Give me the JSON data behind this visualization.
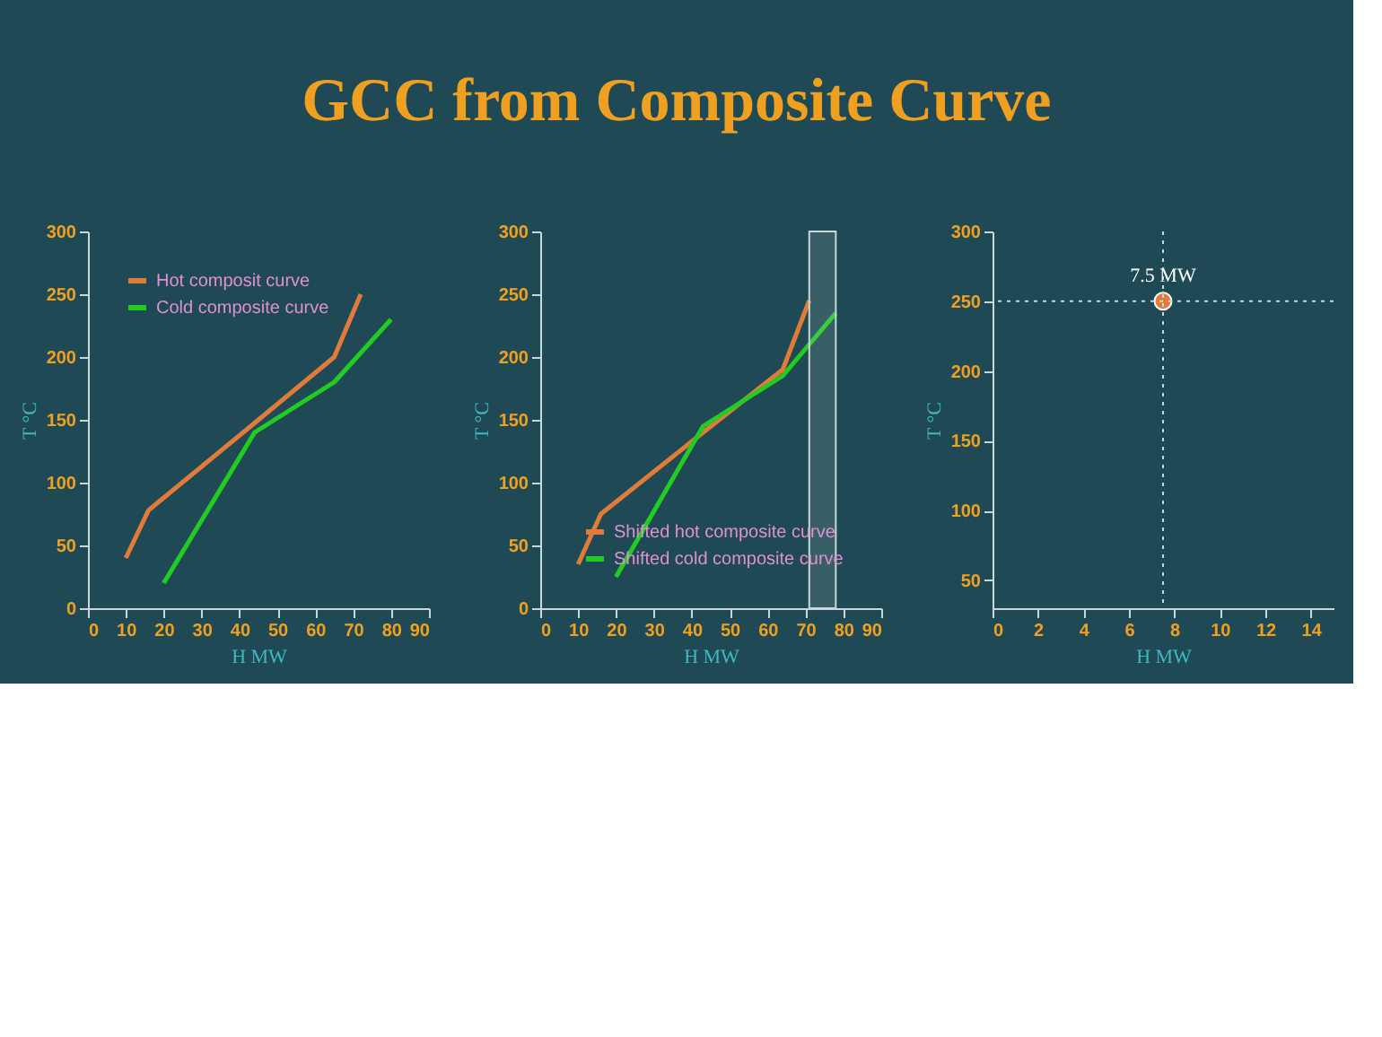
{
  "chart_data": [
    {
      "type": "line",
      "title": "GCC from Composite Curve",
      "xlabel": "H MW",
      "ylabel": "T °C",
      "xlim": [
        0,
        90
      ],
      "xticks": [
        0,
        10,
        20,
        30,
        40,
        50,
        60,
        70,
        80,
        90
      ],
      "ylim": [
        0,
        300
      ],
      "yticks": [
        0,
        50,
        100,
        150,
        200,
        250,
        300
      ],
      "grid": false,
      "legend": "top left",
      "series": [
        {
          "name": "Hot composit curve",
          "color": "#e07b39",
          "x": [
            10,
            16,
            45,
            65,
            72
          ],
          "values": [
            40,
            78,
            150,
            200,
            250
          ]
        },
        {
          "name": "Cold composite curve",
          "color": "#22cc22",
          "x": [
            20,
            44,
            65,
            80
          ],
          "values": [
            20,
            140,
            180,
            230
          ]
        }
      ]
    },
    {
      "type": "line",
      "xlabel": "H MW",
      "ylabel": "T °C",
      "xlim": [
        0,
        90
      ],
      "xticks": [
        0,
        10,
        20,
        30,
        40,
        50,
        60,
        70,
        80,
        90
      ],
      "ylim": [
        0,
        300
      ],
      "yticks": [
        0,
        50,
        100,
        150,
        200,
        250,
        300
      ],
      "grid": false,
      "legend": "bottom right",
      "bands": [
        {
          "axis": "x",
          "from": 71,
          "to": 78,
          "color": "#c8d8d8"
        }
      ],
      "series": [
        {
          "name": "Shifted hot composite curve",
          "color": "#e07b39",
          "x": [
            10,
            16,
            43,
            64,
            71
          ],
          "values": [
            35,
            75,
            140,
            190,
            245
          ]
        },
        {
          "name": "Shifted cold composite curve",
          "color": "#22cc22",
          "x": [
            20,
            43,
            64,
            78
          ],
          "values": [
            25,
            145,
            185,
            235
          ]
        }
      ]
    },
    {
      "type": "scatter",
      "xlabel": "H MW",
      "ylabel": "T °C",
      "xlim": [
        0,
        15
      ],
      "xticks": [
        0,
        2,
        4,
        6,
        8,
        10,
        12,
        14
      ],
      "ylim": [
        30,
        300
      ],
      "yticks": [
        50,
        100,
        150,
        200,
        250,
        300
      ],
      "grid": false,
      "marker": "circle",
      "ref_lines": [
        {
          "axis": "y",
          "value": 250,
          "color": "#c8d8d8",
          "line_style": "dotted"
        },
        {
          "axis": "x",
          "value": 7.5,
          "color": "#c8d8d8",
          "line_style": "dotted"
        }
      ],
      "annotations": [
        {
          "text": "7.5 MW",
          "x": 7.5,
          "y": 250
        }
      ],
      "series": [
        {
          "color": "#e07b39",
          "x": [
            7.5
          ],
          "values": [
            250
          ]
        }
      ]
    }
  ]
}
